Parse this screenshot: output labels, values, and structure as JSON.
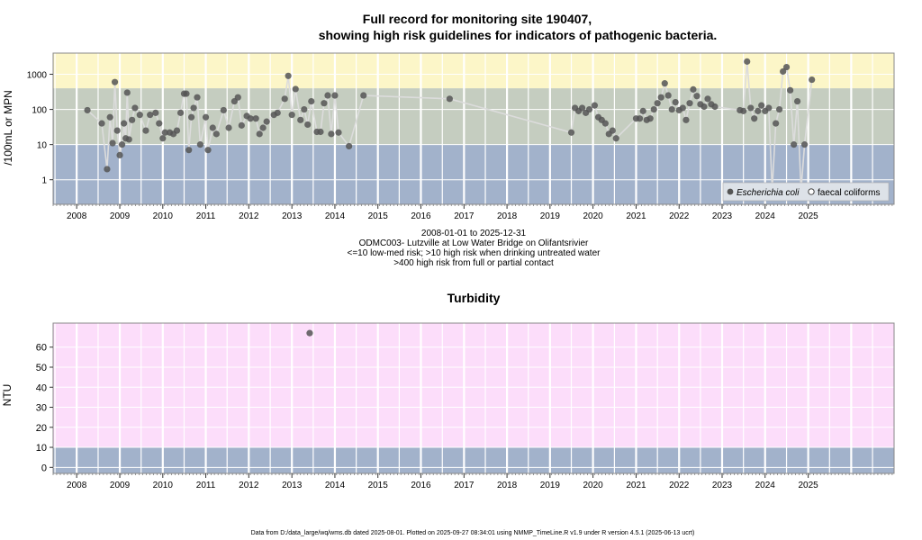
{
  "top_title": {
    "line1": "Full record for monitoring site 190407,",
    "line2": "showing high risk guidelines for indicators of pathogenic bacteria."
  },
  "top_captions": {
    "range": "2008-01-01 to 2025-12-31",
    "site": "ODMC003- Lutzville at Low Water Bridge on Olifantsrivier",
    "guide1": "<=10 low-med risk; >10 high risk when drinking untreated water",
    "guide2": ">400 high risk from full or partial contact"
  },
  "bottom_title": "Turbidity",
  "footer": "Data from D:/data_large/wq/wms.db dated 2025-08-01. Plotted on 2025-09-27 08:34:01 using NMMP_TimeLine.R v1.9 under R version 4.5.1 (2025-06-13 ucrt)",
  "colors": {
    "low_band": "#a2b2cb",
    "mid_band": "#c5cdc0",
    "high_band": "#fcf6c8",
    "turb_high_band": "#fcddfa",
    "point": "#555555",
    "line": "#dcdcdc",
    "grid": "#ffffff",
    "frame": "#888888"
  },
  "chart_data": [
    {
      "type": "scatter",
      "ylabel": "/100mL or MPN",
      "y_scale": "log",
      "yticks": [
        "1",
        "10",
        "100",
        "1000"
      ],
      "ylim": [
        0.2,
        4000
      ],
      "xlim": [
        "2007-06-15",
        "2026-12-31"
      ],
      "x_tick_labels": [
        "2008",
        "2009",
        "2010",
        "2011",
        "2012",
        "2013",
        "2014",
        "2015",
        "2016",
        "2017",
        "2018",
        "2019",
        "2020",
        "2021",
        "2022",
        "2023",
        "2024",
        "2025"
      ],
      "grid": true,
      "legend_position": "bottom-right",
      "legend": [
        {
          "label": "Escherichia coli",
          "italic": true,
          "marker": "filled-circle"
        },
        {
          "label": "faecal coliforms",
          "italic": false,
          "marker": "open-circle"
        }
      ],
      "bands": [
        {
          "from": 0.2,
          "to": 10,
          "color": "#a2b2cb"
        },
        {
          "from": 10,
          "to": 400,
          "color": "#c5cdc0"
        },
        {
          "from": 400,
          "to": 4000,
          "color": "#fcf6c8"
        }
      ],
      "series": [
        {
          "name": "Escherichia coli",
          "points": [
            [
              "2008-04-01",
              95
            ],
            [
              "2008-08-01",
              40
            ],
            [
              "2008-09-15",
              2
            ],
            [
              "2008-10-10",
              60
            ],
            [
              "2008-11-01",
              11
            ],
            [
              "2008-11-20",
              600
            ],
            [
              "2008-12-10",
              25
            ],
            [
              "2009-01-01",
              5
            ],
            [
              "2009-01-20",
              10
            ],
            [
              "2009-02-05",
              40
            ],
            [
              "2009-02-20",
              15
            ],
            [
              "2009-03-05",
              300
            ],
            [
              "2009-03-20",
              14
            ],
            [
              "2009-04-15",
              50
            ],
            [
              "2009-05-10",
              110
            ],
            [
              "2009-06-20",
              70
            ],
            [
              "2009-08-10",
              25
            ],
            [
              "2009-09-15",
              70
            ],
            [
              "2009-11-01",
              80
            ],
            [
              "2009-12-01",
              40
            ],
            [
              "2010-01-01",
              15
            ],
            [
              "2010-01-20",
              22
            ],
            [
              "2010-03-01",
              22
            ],
            [
              "2010-04-01",
              20
            ],
            [
              "2010-05-01",
              25
            ],
            [
              "2010-06-01",
              80
            ],
            [
              "2010-07-01",
              280
            ],
            [
              "2010-07-20",
              280
            ],
            [
              "2010-08-10",
              7
            ],
            [
              "2010-09-01",
              60
            ],
            [
              "2010-09-20",
              110
            ],
            [
              "2010-10-20",
              220
            ],
            [
              "2010-11-15",
              10
            ],
            [
              "2011-01-01",
              60
            ],
            [
              "2011-01-20",
              7
            ],
            [
              "2011-03-01",
              30
            ],
            [
              "2011-04-01",
              20
            ],
            [
              "2011-06-01",
              95
            ],
            [
              "2011-07-15",
              30
            ],
            [
              "2011-09-01",
              170
            ],
            [
              "2011-10-01",
              220
            ],
            [
              "2011-11-01",
              35
            ],
            [
              "2011-12-15",
              65
            ],
            [
              "2012-01-15",
              55
            ],
            [
              "2012-03-01",
              55
            ],
            [
              "2012-04-01",
              20
            ],
            [
              "2012-05-01",
              30
            ],
            [
              "2012-06-01",
              45
            ],
            [
              "2012-08-01",
              70
            ],
            [
              "2012-09-01",
              80
            ],
            [
              "2012-11-01",
              200
            ],
            [
              "2012-12-01",
              900
            ],
            [
              "2013-01-01",
              70
            ],
            [
              "2013-02-01",
              380
            ],
            [
              "2013-03-15",
              50
            ],
            [
              "2013-04-15",
              100
            ],
            [
              "2013-05-15",
              37
            ],
            [
              "2013-06-15",
              170
            ],
            [
              "2013-08-01",
              23
            ],
            [
              "2013-09-01",
              23
            ],
            [
              "2013-10-01",
              150
            ],
            [
              "2013-11-01",
              250
            ],
            [
              "2013-12-01",
              20
            ],
            [
              "2014-01-01",
              250
            ],
            [
              "2014-02-01",
              22
            ],
            [
              "2014-05-01",
              9
            ],
            [
              "2014-09-01",
              250
            ],
            [
              "2016-09-01",
              200
            ],
            [
              "2019-07-01",
              22
            ],
            [
              "2019-08-01",
              110
            ],
            [
              "2019-09-01",
              90
            ],
            [
              "2019-10-01",
              110
            ],
            [
              "2019-11-01",
              80
            ],
            [
              "2019-12-01",
              100
            ],
            [
              "2020-01-15",
              130
            ],
            [
              "2020-02-15",
              60
            ],
            [
              "2020-03-15",
              50
            ],
            [
              "2020-04-15",
              40
            ],
            [
              "2020-05-15",
              20
            ],
            [
              "2020-06-15",
              25
            ],
            [
              "2020-07-15",
              15
            ],
            [
              "2021-01-01",
              55
            ],
            [
              "2021-02-01",
              55
            ],
            [
              "2021-03-01",
              90
            ],
            [
              "2021-04-01",
              50
            ],
            [
              "2021-05-01",
              55
            ],
            [
              "2021-06-01",
              100
            ],
            [
              "2021-07-01",
              150
            ],
            [
              "2021-08-01",
              220
            ],
            [
              "2021-09-01",
              550
            ],
            [
              "2021-10-01",
              250
            ],
            [
              "2021-11-01",
              100
            ],
            [
              "2021-12-01",
              160
            ],
            [
              "2022-01-01",
              95
            ],
            [
              "2022-02-01",
              110
            ],
            [
              "2022-03-01",
              50
            ],
            [
              "2022-04-01",
              150
            ],
            [
              "2022-05-01",
              370
            ],
            [
              "2022-06-01",
              240
            ],
            [
              "2022-07-01",
              140
            ],
            [
              "2022-08-01",
              120
            ],
            [
              "2022-09-01",
              200
            ],
            [
              "2022-10-01",
              140
            ],
            [
              "2022-11-01",
              120
            ],
            [
              "2023-06-01",
              95
            ],
            [
              "2023-07-01",
              90
            ],
            [
              "2023-08-01",
              2300
            ],
            [
              "2023-09-01",
              110
            ],
            [
              "2023-10-01",
              55
            ],
            [
              "2023-11-01",
              90
            ],
            [
              "2023-12-01",
              130
            ],
            [
              "2024-01-01",
              90
            ],
            [
              "2024-02-01",
              110
            ],
            [
              "2024-03-01",
              0.5
            ],
            [
              "2024-04-01",
              40
            ],
            [
              "2024-05-01",
              100
            ],
            [
              "2024-06-01",
              1200
            ],
            [
              "2024-07-01",
              1600
            ],
            [
              "2024-08-01",
              350
            ],
            [
              "2024-09-01",
              10
            ],
            [
              "2024-10-01",
              170
            ],
            [
              "2024-11-01",
              0.5
            ],
            [
              "2024-12-01",
              10
            ],
            [
              "2025-02-01",
              700
            ]
          ]
        }
      ]
    },
    {
      "type": "scatter",
      "title": "Turbidity",
      "ylabel": "NTU",
      "yticks": [
        0,
        10,
        20,
        30,
        40,
        50,
        60
      ],
      "ylim": [
        -3,
        72
      ],
      "xlim": [
        "2007-06-15",
        "2026-12-31"
      ],
      "x_tick_labels": [
        "2008",
        "2009",
        "2010",
        "2011",
        "2012",
        "2013",
        "2014",
        "2015",
        "2016",
        "2017",
        "2018",
        "2019",
        "2020",
        "2021",
        "2022",
        "2023",
        "2024",
        "2025"
      ],
      "grid": true,
      "bands": [
        {
          "from": -3,
          "to": 10,
          "color": "#a2b2cb"
        },
        {
          "from": 10,
          "to": 72,
          "color": "#fcddfa"
        }
      ],
      "series": [
        {
          "name": "Turbidity",
          "points": [
            [
              "2013-06-01",
              67
            ]
          ]
        }
      ]
    }
  ]
}
